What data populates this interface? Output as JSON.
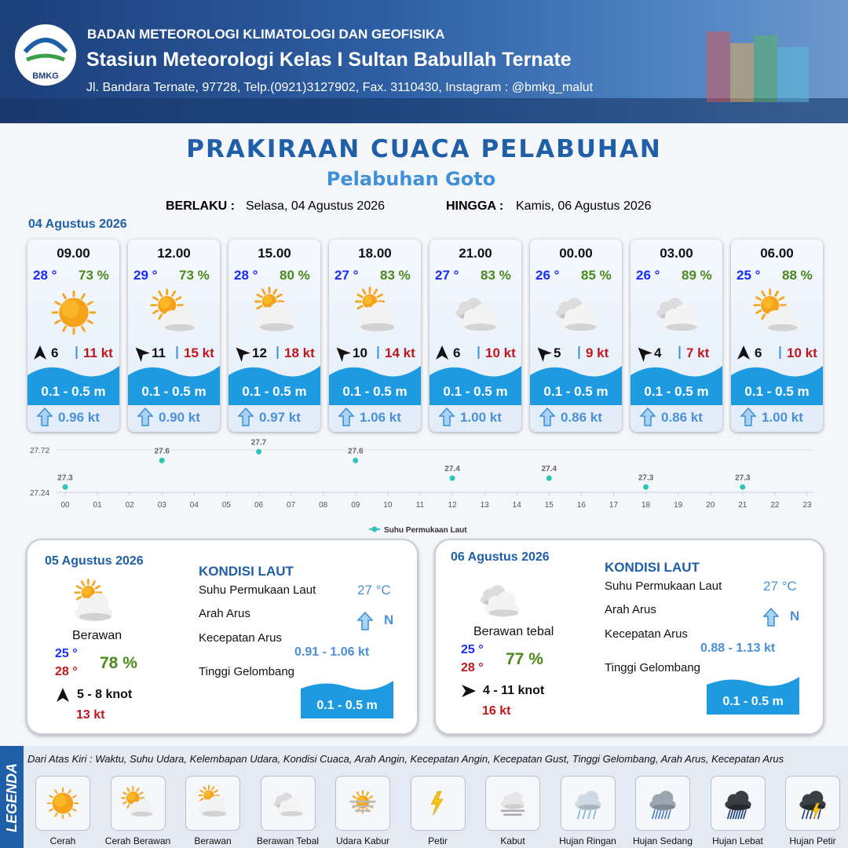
{
  "header": {
    "logo": "BMKG",
    "agency": "BADAN METEOROLOGI KLIMATOLOGI DAN GEOFISIKA",
    "station": "Stasiun Meteorologi Kelas I Sultan Babullah Ternate",
    "address": "Jl. Bandara Ternate, 97728, Telp.(0921)3127902, Fax. 3110430, Instagram : @bmkg_malut"
  },
  "title": "PRAKIRAAN CUACA PELABUHAN",
  "subtitle": "Pelabuhan Goto",
  "validity": {
    "from_label": "BERLAKU :",
    "from": "Selasa, 04 Agustus 2026",
    "to_label": "HINGGA :",
    "to": "Kamis, 06 Agustus 2026"
  },
  "today": {
    "date": "04 Agustus 2026",
    "forecasts": [
      {
        "time": "09.00",
        "temp": "28 °",
        "humidity": "73 %",
        "wind": "6",
        "gust": "11 kt",
        "wave": "0.1 - 0.5 m",
        "current": "0.96 kt"
      },
      {
        "time": "12.00",
        "temp": "29 °",
        "humidity": "73 %",
        "wind": "11",
        "gust": "15 kt",
        "wave": "0.1 - 0.5 m",
        "current": "0.90 kt"
      },
      {
        "time": "15.00",
        "temp": "28 °",
        "humidity": "80 %",
        "wind": "12",
        "gust": "18 kt",
        "wave": "0.1 - 0.5 m",
        "current": "0.97 kt"
      },
      {
        "time": "18.00",
        "temp": "27 °",
        "humidity": "83 %",
        "wind": "10",
        "gust": "14 kt",
        "wave": "0.1 - 0.5 m",
        "current": "1.06 kt"
      },
      {
        "time": "21.00",
        "temp": "27 °",
        "humidity": "83 %",
        "wind": "6",
        "gust": "10 kt",
        "wave": "0.1 - 0.5 m",
        "current": "1.00 kt"
      },
      {
        "time": "00.00",
        "temp": "26 °",
        "humidity": "85 %",
        "wind": "5",
        "gust": "9 kt",
        "wave": "0.1 - 0.5 m",
        "current": "0.86 kt"
      },
      {
        "time": "03.00",
        "temp": "26 °",
        "humidity": "89 %",
        "wind": "4",
        "gust": "7 kt",
        "wave": "0.1 - 0.5 m",
        "current": "0.86 kt"
      },
      {
        "time": "06.00",
        "temp": "25 °",
        "humidity": "88 %",
        "wind": "6",
        "gust": "10 kt",
        "wave": "0.1 - 0.5 m",
        "current": "1.00 kt"
      }
    ]
  },
  "chart_data": {
    "type": "scatter",
    "x": [
      0,
      3,
      6,
      9,
      12,
      15,
      18,
      21
    ],
    "series": [
      {
        "name": "Suhu Permukaan Laut",
        "color": "#2ec4b6",
        "values": [
          27.3,
          27.6,
          27.7,
          27.6,
          27.4,
          27.4,
          27.3,
          27.3
        ]
      }
    ],
    "xlim": [
      0,
      23
    ],
    "ylim": [
      27.24,
      27.72
    ],
    "yticks": [
      27.24,
      27.72
    ],
    "xticks": [
      {
        "value": 0,
        "label": "00"
      },
      {
        "value": 1,
        "label": "01"
      },
      {
        "value": 2,
        "label": "02"
      },
      {
        "value": 3,
        "label": "03"
      },
      {
        "value": 4,
        "label": "04"
      },
      {
        "value": 5,
        "label": "05"
      },
      {
        "value": 6,
        "label": "06"
      },
      {
        "value": 7,
        "label": "07"
      },
      {
        "value": 8,
        "label": "08"
      },
      {
        "value": 9,
        "label": "09"
      },
      {
        "value": 10,
        "label": "10"
      },
      {
        "value": 11,
        "label": "11"
      },
      {
        "value": 12,
        "label": "12"
      },
      {
        "value": 13,
        "label": "13"
      },
      {
        "value": 14,
        "label": "14"
      },
      {
        "value": 15,
        "label": "15"
      },
      {
        "value": 16,
        "label": "16"
      },
      {
        "value": 17,
        "label": "17"
      },
      {
        "value": 18,
        "label": "18"
      },
      {
        "value": 19,
        "label": "19"
      },
      {
        "value": 20,
        "label": "20"
      },
      {
        "value": 21,
        "label": "21"
      },
      {
        "value": 22,
        "label": "22"
      },
      {
        "value": 23,
        "label": "23"
      }
    ],
    "grid": true,
    "legend": "bottom"
  },
  "days": [
    {
      "date": "05 Agustus 2026",
      "condition": "Berawan",
      "temp_min": "25 °",
      "temp_max": "28 °",
      "humidity": "78 %",
      "wind": "5  - 8 knot",
      "gust": "13 kt",
      "sea": {
        "title": "KONDISI LAUT",
        "labels": [
          "Suhu Permukaan Laut",
          "Arah Arus",
          "Kecepatan Arus",
          "Tinggi Gelombang"
        ],
        "sst": "27 °C",
        "current_dir": "N",
        "current_speed": "0.91  - 1.06 kt",
        "wave": "0.1 - 0.5 m"
      }
    },
    {
      "date": "06 Agustus 2026",
      "condition": "Berawan tebal",
      "temp_min": "25 °",
      "temp_max": "28 °",
      "humidity": "77 %",
      "wind": "4  - 11 knot",
      "gust": "16 kt",
      "sea": {
        "title": "KONDISI LAUT",
        "labels": [
          "Suhu Permukaan Laut",
          "Arah Arus",
          "Kecepatan Arus",
          "Tinggi Gelombang"
        ],
        "sst": "27 °C",
        "current_dir": "N",
        "current_speed": "0.88  - 1.13 kt",
        "wave": "0.1 - 0.5 m"
      }
    }
  ],
  "legend": {
    "title": "LEGENDA",
    "description": "Dari Atas Kiri : Waktu, Suhu Udara, Kelembapan Udara, Kondisi Cuaca, Arah Angin, Kecepatan Angin, Kecepatan Gust, Tinggi Gelombang, Arah Arus, Kecepatan Arus",
    "items": [
      "Cerah",
      "Cerah Berawan",
      "Berawan",
      "Berawan Tebal",
      "Udara Kabur",
      "Petir",
      "Kabut",
      "Hujan Ringan",
      "Hujan Sedang",
      "Hujan Lebat",
      "Hujan Petir"
    ]
  }
}
